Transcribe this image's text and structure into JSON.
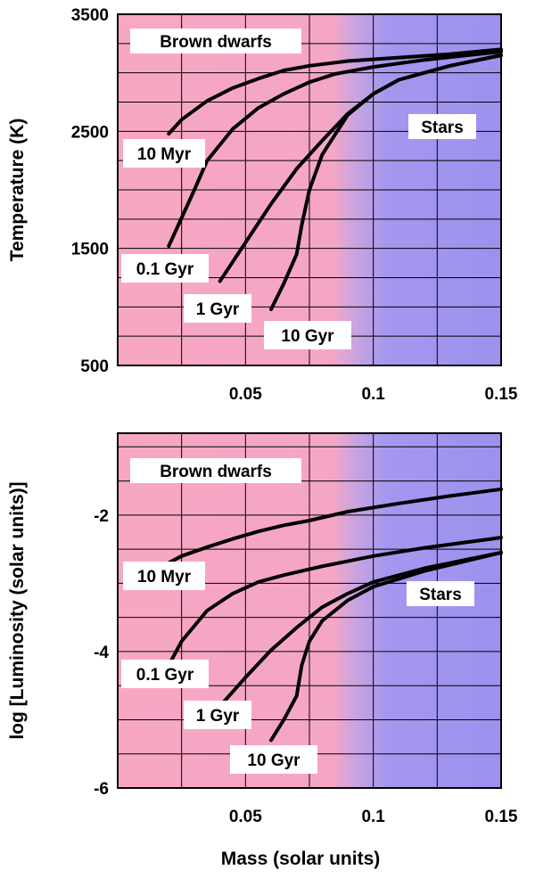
{
  "chart_data": [
    {
      "type": "line",
      "title": "",
      "xlabel": "",
      "ylabel": "Temperature (K)",
      "xlim": [
        0,
        0.15
      ],
      "ylim": [
        500,
        3500
      ],
      "x_ticks": [
        "0.05",
        "0.1",
        "0.15"
      ],
      "y_ticks": [
        "500",
        "1500",
        "2500",
        "3500"
      ],
      "grid": true,
      "regions": [
        "Brown dwarfs",
        "Stars"
      ],
      "series": [
        {
          "name": "10 Myr",
          "points": [
            [
              0.02,
              2480
            ],
            [
              0.025,
              2600
            ],
            [
              0.035,
              2760
            ],
            [
              0.045,
              2870
            ],
            [
              0.055,
              2950
            ],
            [
              0.065,
              3020
            ],
            [
              0.075,
              3060
            ],
            [
              0.09,
              3100
            ],
            [
              0.11,
              3130
            ],
            [
              0.13,
              3160
            ],
            [
              0.15,
              3200
            ]
          ]
        },
        {
          "name": "0.1 Gyr",
          "points": [
            [
              0.02,
              1520
            ],
            [
              0.03,
              2000
            ],
            [
              0.035,
              2250
            ],
            [
              0.045,
              2520
            ],
            [
              0.055,
              2700
            ],
            [
              0.065,
              2820
            ],
            [
              0.075,
              2920
            ],
            [
              0.085,
              2990
            ],
            [
              0.1,
              3050
            ],
            [
              0.12,
              3110
            ],
            [
              0.15,
              3180
            ]
          ]
        },
        {
          "name": "1 Gyr",
          "points": [
            [
              0.04,
              1220
            ],
            [
              0.05,
              1550
            ],
            [
              0.06,
              1880
            ],
            [
              0.07,
              2180
            ],
            [
              0.08,
              2420
            ],
            [
              0.09,
              2650
            ],
            [
              0.1,
              2820
            ],
            [
              0.11,
              2940
            ],
            [
              0.13,
              3060
            ],
            [
              0.15,
              3150
            ]
          ]
        },
        {
          "name": "10 Gyr",
          "points": [
            [
              0.06,
              980
            ],
            [
              0.065,
              1200
            ],
            [
              0.07,
              1450
            ],
            [
              0.072,
              1700
            ],
            [
              0.075,
              2000
            ],
            [
              0.08,
              2300
            ],
            [
              0.09,
              2640
            ],
            [
              0.1,
              2820
            ],
            [
              0.11,
              2940
            ],
            [
              0.13,
              3060
            ],
            [
              0.15,
              3150
            ]
          ]
        }
      ]
    },
    {
      "type": "line",
      "title": "",
      "xlabel": "Mass (solar units)",
      "ylabel": "log [Luminosity (solar units)]",
      "xlim": [
        0,
        0.15
      ],
      "ylim": [
        -6,
        -0.8
      ],
      "x_ticks": [
        "0.05",
        "0.1",
        "0.15"
      ],
      "y_ticks": [
        "-2",
        "-4",
        "-6"
      ],
      "grid": true,
      "regions": [
        "Brown dwarfs",
        "Stars"
      ],
      "series": [
        {
          "name": "10 Myr",
          "points": [
            [
              0.02,
              -2.7
            ],
            [
              0.025,
              -2.6
            ],
            [
              0.035,
              -2.47
            ],
            [
              0.045,
              -2.35
            ],
            [
              0.055,
              -2.24
            ],
            [
              0.065,
              -2.15
            ],
            [
              0.075,
              -2.08
            ],
            [
              0.09,
              -1.95
            ],
            [
              0.11,
              -1.83
            ],
            [
              0.13,
              -1.72
            ],
            [
              0.15,
              -1.62
            ]
          ]
        },
        {
          "name": "0.1 Gyr",
          "points": [
            [
              0.02,
              -4.2
            ],
            [
              0.025,
              -3.85
            ],
            [
              0.035,
              -3.4
            ],
            [
              0.045,
              -3.15
            ],
            [
              0.055,
              -2.98
            ],
            [
              0.065,
              -2.88
            ],
            [
              0.08,
              -2.75
            ],
            [
              0.1,
              -2.6
            ],
            [
              0.12,
              -2.48
            ],
            [
              0.15,
              -2.33
            ]
          ]
        },
        {
          "name": "1 Gyr",
          "points": [
            [
              0.04,
              -4.8
            ],
            [
              0.05,
              -4.38
            ],
            [
              0.06,
              -3.98
            ],
            [
              0.07,
              -3.65
            ],
            [
              0.08,
              -3.35
            ],
            [
              0.09,
              -3.15
            ],
            [
              0.1,
              -2.98
            ],
            [
              0.12,
              -2.78
            ],
            [
              0.15,
              -2.55
            ]
          ]
        },
        {
          "name": "10 Gyr",
          "points": [
            [
              0.06,
              -5.3
            ],
            [
              0.065,
              -5.0
            ],
            [
              0.07,
              -4.65
            ],
            [
              0.072,
              -4.2
            ],
            [
              0.075,
              -3.85
            ],
            [
              0.08,
              -3.55
            ],
            [
              0.09,
              -3.25
            ],
            [
              0.1,
              -3.05
            ],
            [
              0.12,
              -2.82
            ],
            [
              0.15,
              -2.55
            ]
          ]
        }
      ]
    }
  ]
}
